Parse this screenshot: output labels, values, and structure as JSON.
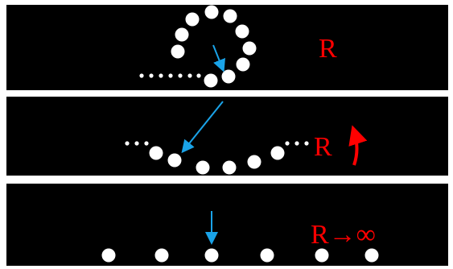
{
  "panels": [
    {
      "label": "R"
    },
    {
      "label": "R"
    },
    {
      "label": "R→∞"
    }
  ]
}
